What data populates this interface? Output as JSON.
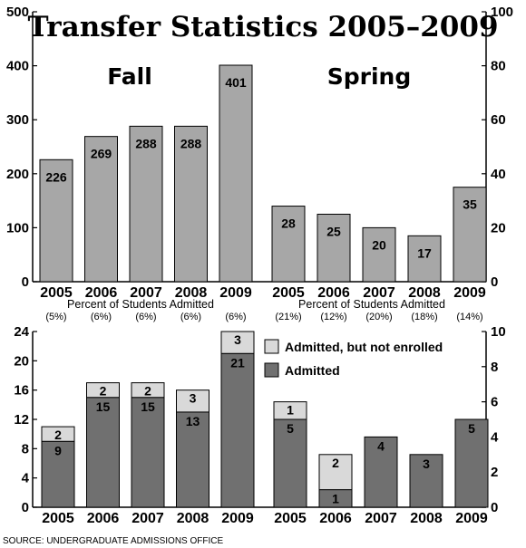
{
  "title": "Transfer Statistics 2005–2009",
  "source": "SOURCE: UNDERGRADUATE ADMISSIONS OFFICE",
  "colors": {
    "transfer_bar": "#a7a7a7",
    "admitted": "#707070",
    "not_enrolled": "#d9d9d9",
    "axis": "#000000"
  },
  "percent_heading": "Percent of Students Admitted",
  "fall_label": "Fall",
  "spring_label": "Spring",
  "chart_data": [
    {
      "type": "bar",
      "panel": "Fall transfers",
      "categories": [
        "2005",
        "2006",
        "2007",
        "2008",
        "2009"
      ],
      "values": [
        226,
        269,
        288,
        288,
        401
      ],
      "value_labels": [
        "226",
        "269",
        "288",
        "288",
        "401"
      ],
      "percent_admitted": [
        "(5%)",
        "(6%)",
        "(6%)",
        "(6%)",
        "(6%)"
      ],
      "ylim": [
        0,
        500
      ],
      "yticks": [
        "0",
        "100",
        "200",
        "300",
        "400",
        "500"
      ],
      "axis_side": "left"
    },
    {
      "type": "bar",
      "panel": "Spring transfers",
      "categories": [
        "2005",
        "2006",
        "2007",
        "2008",
        "2009"
      ],
      "values": [
        28,
        25,
        20,
        17,
        35
      ],
      "value_labels": [
        "28",
        "25",
        "20",
        "17",
        "35"
      ],
      "percent_admitted": [
        "(21%)",
        "(12%)",
        "(20%)",
        "(18%)",
        "(14%)"
      ],
      "ylim": [
        0,
        100
      ],
      "yticks": [
        "0",
        "20",
        "40",
        "60",
        "80",
        "100"
      ],
      "axis_side": "right"
    },
    {
      "type": "bar",
      "stacked": true,
      "panel": "Fall admitted",
      "categories": [
        "2005",
        "2006",
        "2007",
        "2008",
        "2009"
      ],
      "series": [
        {
          "name": "Admitted",
          "values": [
            9,
            15,
            15,
            13,
            21
          ],
          "labels": [
            "9",
            "15",
            "15",
            "13",
            "21"
          ]
        },
        {
          "name": "Admitted, but not enrolled",
          "values": [
            2,
            2,
            2,
            3,
            3
          ],
          "labels": [
            "2",
            "2",
            "2",
            "3",
            "3"
          ]
        }
      ],
      "ylim": [
        0,
        24
      ],
      "yticks": [
        "0",
        "4",
        "8",
        "12",
        "16",
        "20",
        "24"
      ],
      "axis_side": "left"
    },
    {
      "type": "bar",
      "stacked": true,
      "panel": "Spring admitted",
      "categories": [
        "2005",
        "2006",
        "2007",
        "2008",
        "2009"
      ],
      "series": [
        {
          "name": "Admitted",
          "values": [
            5,
            1,
            4,
            3,
            5
          ],
          "labels": [
            "5",
            "1",
            "4",
            "3",
            "5"
          ]
        },
        {
          "name": "Admitted, but not enrolled",
          "values": [
            1,
            2,
            0,
            0,
            0
          ],
          "labels": [
            "1",
            "2",
            "",
            "",
            ""
          ]
        }
      ],
      "ylim": [
        0,
        10
      ],
      "yticks": [
        "0",
        "2",
        "4",
        "6",
        "8",
        "10"
      ],
      "axis_side": "right",
      "legend_position": "top"
    }
  ]
}
